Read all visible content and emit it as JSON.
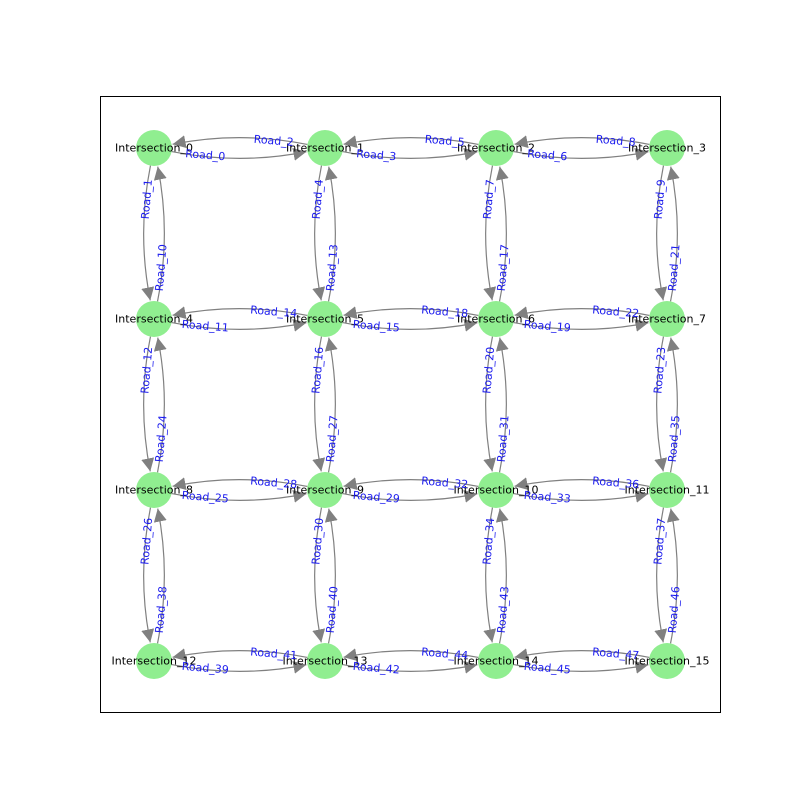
{
  "colors": {
    "node_fill": "#90ee90",
    "edge_stroke": "#808080",
    "edge_label": "#1a1aee",
    "node_label": "#000000"
  },
  "graph": {
    "layout": "grid-4x4",
    "nodes": [
      "Intersection_0",
      "Intersection_1",
      "Intersection_2",
      "Intersection_3",
      "Intersection_4",
      "Intersection_5",
      "Intersection_6",
      "Intersection_7",
      "Intersection_8",
      "Intersection_9",
      "Intersection_10",
      "Intersection_11",
      "Intersection_12",
      "Intersection_13",
      "Intersection_14",
      "Intersection_15"
    ],
    "edges": [
      {
        "label": "Road_0",
        "from": 0,
        "to": 1
      },
      {
        "label": "Road_1",
        "from": 0,
        "to": 4
      },
      {
        "label": "Road_2",
        "from": 1,
        "to": 0
      },
      {
        "label": "Road_3",
        "from": 1,
        "to": 2
      },
      {
        "label": "Road_4",
        "from": 1,
        "to": 5
      },
      {
        "label": "Road_5",
        "from": 2,
        "to": 1
      },
      {
        "label": "Road_6",
        "from": 2,
        "to": 3
      },
      {
        "label": "Road_7",
        "from": 2,
        "to": 6
      },
      {
        "label": "Road_8",
        "from": 3,
        "to": 2
      },
      {
        "label": "Road_9",
        "from": 3,
        "to": 7
      },
      {
        "label": "Road_10",
        "from": 4,
        "to": 0
      },
      {
        "label": "Road_11",
        "from": 4,
        "to": 5
      },
      {
        "label": "Road_12",
        "from": 4,
        "to": 8
      },
      {
        "label": "Road_13",
        "from": 5,
        "to": 1
      },
      {
        "label": "Road_14",
        "from": 5,
        "to": 4
      },
      {
        "label": "Road_15",
        "from": 5,
        "to": 6
      },
      {
        "label": "Road_16",
        "from": 5,
        "to": 9
      },
      {
        "label": "Road_17",
        "from": 6,
        "to": 2
      },
      {
        "label": "Road_18",
        "from": 6,
        "to": 5
      },
      {
        "label": "Road_19",
        "from": 6,
        "to": 7
      },
      {
        "label": "Road_20",
        "from": 6,
        "to": 10
      },
      {
        "label": "Road_21",
        "from": 7,
        "to": 3
      },
      {
        "label": "Road_22",
        "from": 7,
        "to": 6
      },
      {
        "label": "Road_23",
        "from": 7,
        "to": 11
      },
      {
        "label": "Road_24",
        "from": 8,
        "to": 4
      },
      {
        "label": "Road_25",
        "from": 8,
        "to": 9
      },
      {
        "label": "Road_26",
        "from": 8,
        "to": 12
      },
      {
        "label": "Road_27",
        "from": 9,
        "to": 5
      },
      {
        "label": "Road_28",
        "from": 9,
        "to": 8
      },
      {
        "label": "Road_29",
        "from": 9,
        "to": 10
      },
      {
        "label": "Road_30",
        "from": 9,
        "to": 13
      },
      {
        "label": "Road_31",
        "from": 10,
        "to": 6
      },
      {
        "label": "Road_32",
        "from": 10,
        "to": 9
      },
      {
        "label": "Road_33",
        "from": 10,
        "to": 11
      },
      {
        "label": "Road_34",
        "from": 10,
        "to": 14
      },
      {
        "label": "Road_35",
        "from": 11,
        "to": 7
      },
      {
        "label": "Road_36",
        "from": 11,
        "to": 10
      },
      {
        "label": "Road_37",
        "from": 11,
        "to": 15
      },
      {
        "label": "Road_38",
        "from": 12,
        "to": 8
      },
      {
        "label": "Road_39",
        "from": 12,
        "to": 13
      },
      {
        "label": "Road_40",
        "from": 13,
        "to": 9
      },
      {
        "label": "Road_41",
        "from": 13,
        "to": 12
      },
      {
        "label": "Road_42",
        "from": 13,
        "to": 14
      },
      {
        "label": "Road_43",
        "from": 14,
        "to": 10
      },
      {
        "label": "Road_44",
        "from": 14,
        "to": 13
      },
      {
        "label": "Road_45",
        "from": 14,
        "to": 15
      },
      {
        "label": "Road_46",
        "from": 15,
        "to": 11
      },
      {
        "label": "Road_47",
        "from": 15,
        "to": 14
      }
    ]
  }
}
